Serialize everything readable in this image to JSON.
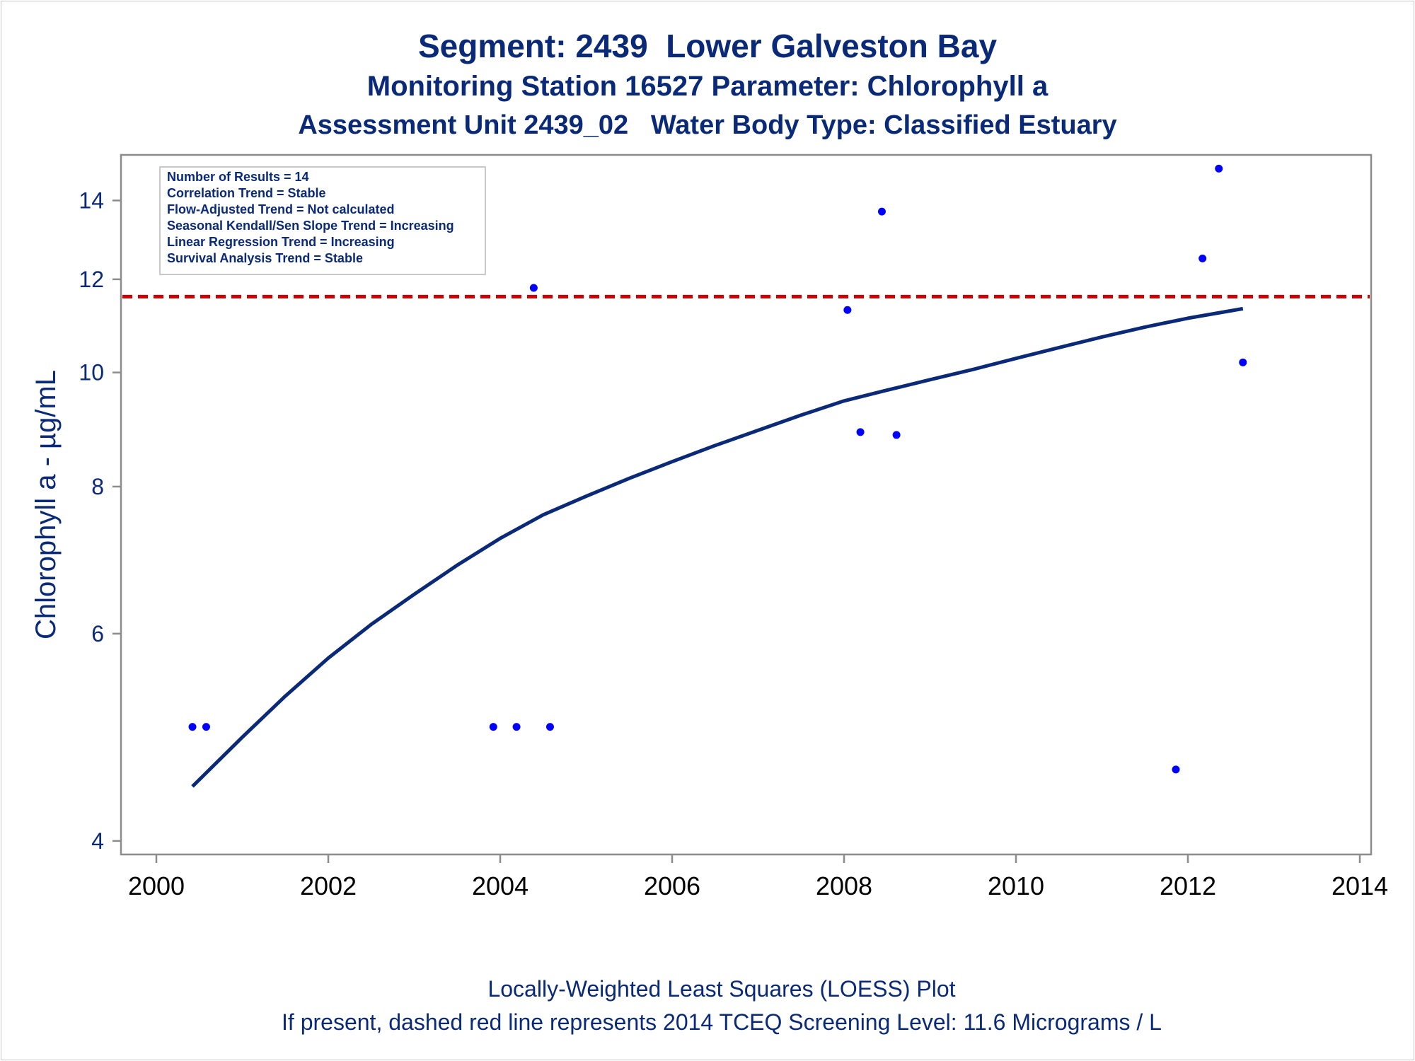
{
  "titles": {
    "line1": "Segment: 2439  Lower Galveston Bay",
    "line2": "Monitoring Station 16527 Parameter: Chlorophyll a",
    "line3": "Assessment Unit 2439_02   Water Body Type: Classified Estuary"
  },
  "footnotes": {
    "line1": "Locally-Weighted Least Squares (LOESS) Plot",
    "line2": "If present, dashed red line represents 2014 TCEQ Screening Level: 11.6 Micrograms / L"
  },
  "stats_box": [
    "Number of Results = 14",
    "Correlation Trend = Stable",
    "Flow-Adjusted Trend = Not calculated",
    "Seasonal Kendall/Sen Slope Trend = Increasing",
    "Linear Regression Trend = Increasing",
    "Survival Analysis Trend = Stable"
  ],
  "colors": {
    "points": "#0000ff",
    "loess": "#0a2a78",
    "screening_line": "#cc0000",
    "axis": "#8c8c8c",
    "text": "#0a2a78"
  },
  "chart_data": {
    "type": "scatter",
    "xlabel": "",
    "ylabel": "Chlorophyll a -  µg/mL",
    "xlim": [
      2000,
      2014
    ],
    "ylim": [
      3.95,
      15.2
    ],
    "y_scale": "log",
    "xticks": [
      2000,
      2002,
      2004,
      2006,
      2008,
      2010,
      2012,
      2014
    ],
    "yticks": [
      4,
      6,
      8,
      10,
      12,
      14
    ],
    "grid": false,
    "legend": "top-left",
    "points": [
      {
        "x": 2000.42,
        "y": 5.0
      },
      {
        "x": 2000.58,
        "y": 5.0
      },
      {
        "x": 2003.92,
        "y": 5.0
      },
      {
        "x": 2004.19,
        "y": 5.0
      },
      {
        "x": 2004.58,
        "y": 5.0
      },
      {
        "x": 2004.39,
        "y": 11.8
      },
      {
        "x": 2008.04,
        "y": 11.3
      },
      {
        "x": 2008.19,
        "y": 8.9
      },
      {
        "x": 2008.61,
        "y": 8.85
      },
      {
        "x": 2008.44,
        "y": 13.7
      },
      {
        "x": 2011.86,
        "y": 4.6
      },
      {
        "x": 2012.17,
        "y": 12.5
      },
      {
        "x": 2012.36,
        "y": 14.9
      },
      {
        "x": 2012.64,
        "y": 10.2
      }
    ],
    "loess": [
      {
        "x": 2000.42,
        "y": 4.45
      },
      {
        "x": 2001.0,
        "y": 4.9
      },
      {
        "x": 2001.5,
        "y": 5.31
      },
      {
        "x": 2002.0,
        "y": 5.72
      },
      {
        "x": 2002.5,
        "y": 6.11
      },
      {
        "x": 2003.0,
        "y": 6.48
      },
      {
        "x": 2003.5,
        "y": 6.86
      },
      {
        "x": 2004.0,
        "y": 7.23
      },
      {
        "x": 2004.5,
        "y": 7.57
      },
      {
        "x": 2005.0,
        "y": 7.85
      },
      {
        "x": 2005.5,
        "y": 8.13
      },
      {
        "x": 2006.0,
        "y": 8.4
      },
      {
        "x": 2006.5,
        "y": 8.67
      },
      {
        "x": 2007.0,
        "y": 8.93
      },
      {
        "x": 2007.5,
        "y": 9.2
      },
      {
        "x": 2008.0,
        "y": 9.46
      },
      {
        "x": 2008.5,
        "y": 9.66
      },
      {
        "x": 2009.0,
        "y": 9.86
      },
      {
        "x": 2009.5,
        "y": 10.06
      },
      {
        "x": 2010.0,
        "y": 10.28
      },
      {
        "x": 2010.5,
        "y": 10.5
      },
      {
        "x": 2011.0,
        "y": 10.72
      },
      {
        "x": 2011.5,
        "y": 10.93
      },
      {
        "x": 2012.0,
        "y": 11.12
      },
      {
        "x": 2012.64,
        "y": 11.33
      }
    ],
    "reference_line": {
      "y": 11.6,
      "style": "dashed",
      "color": "#cc0000"
    }
  }
}
